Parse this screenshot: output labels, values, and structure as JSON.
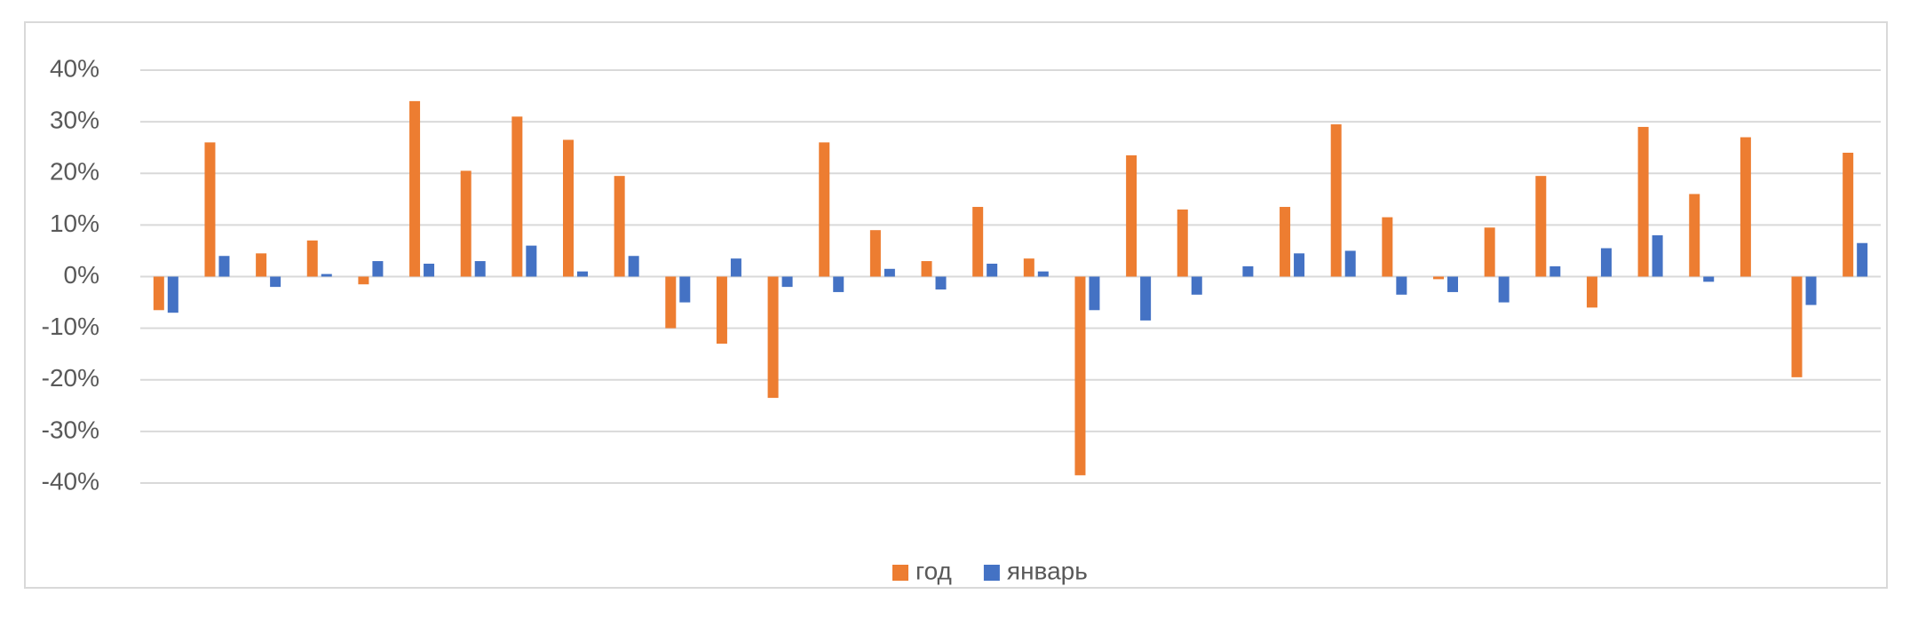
{
  "chart_data": {
    "type": "bar",
    "categories": [
      null,
      null,
      null,
      null,
      null,
      null,
      null,
      null,
      null,
      null,
      null,
      null,
      null,
      null,
      null,
      null,
      null,
      null,
      null,
      null,
      null,
      null,
      null,
      null,
      null,
      null,
      null,
      null,
      null,
      null,
      null,
      null,
      null,
      null
    ],
    "series": [
      {
        "name": "год",
        "color": "#ed7d31",
        "values": [
          -6.5,
          26,
          4.5,
          7,
          -1.5,
          34,
          20.5,
          31,
          26.5,
          19.5,
          -10,
          -13,
          -23.5,
          26,
          9,
          3,
          13.5,
          3.5,
          -38.5,
          23.5,
          13,
          0,
          13.5,
          29.5,
          11.5,
          -0.5,
          9.5,
          19.5,
          -6,
          29,
          16,
          27,
          -19.5,
          24
        ]
      },
      {
        "name": "январь",
        "color": "#4472c4",
        "values": [
          -7,
          4,
          -2,
          0.5,
          3,
          2.5,
          3,
          6,
          1,
          4,
          -5,
          3.5,
          -2,
          -3,
          1.5,
          -2.5,
          2.5,
          1,
          -6.5,
          -8.5,
          -3.5,
          2,
          4.5,
          5,
          -3.5,
          -3,
          -5,
          2,
          5.5,
          8,
          -1,
          0,
          -5.5,
          6.5
        ]
      }
    ],
    "ylim": [
      -40,
      40
    ],
    "yticks": [
      {
        "value": 40,
        "label": "40%"
      },
      {
        "value": 30,
        "label": "30%"
      },
      {
        "value": 20,
        "label": "20%"
      },
      {
        "value": 10,
        "label": "10%"
      },
      {
        "value": 0,
        "label": "0%"
      },
      {
        "value": -10,
        "label": "-10%"
      },
      {
        "value": -20,
        "label": "-20%"
      },
      {
        "value": -30,
        "label": "-30%"
      },
      {
        "value": -40,
        "label": "-40%"
      }
    ],
    "grid": true,
    "legend": "bottom"
  }
}
